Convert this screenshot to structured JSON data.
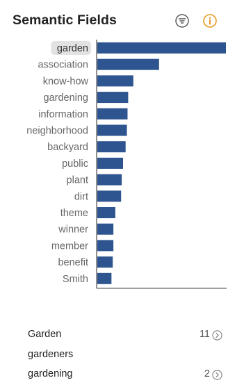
{
  "header": {
    "title": "Semantic Fields",
    "filter_icon": "filter-lines-icon",
    "info_icon": "info-circle-icon",
    "info_color": "#e69a1e"
  },
  "chart_data": {
    "type": "bar",
    "orientation": "horizontal",
    "title": "",
    "xlabel": "",
    "ylabel": "",
    "categories": [
      "garden",
      "association",
      "know-how",
      "gardening",
      "information",
      "neighborhood",
      "backyard",
      "public",
      "plant",
      "dirt",
      "theme",
      "winner",
      "member",
      "benefit",
      "Smith"
    ],
    "values": [
      100,
      48,
      28,
      24,
      23.5,
      23,
      22,
      20,
      19,
      18.5,
      14,
      12.5,
      12.5,
      12,
      11
    ],
    "selected": "garden",
    "bar_color": "#2e5590",
    "grid": false,
    "legend": "none"
  },
  "list": {
    "items": [
      {
        "label": "Garden",
        "count": "11",
        "has_chevron": true
      },
      {
        "label": "gardeners",
        "count": "",
        "has_chevron": false
      },
      {
        "label": "gardening",
        "count": "2",
        "has_chevron": true
      }
    ]
  }
}
